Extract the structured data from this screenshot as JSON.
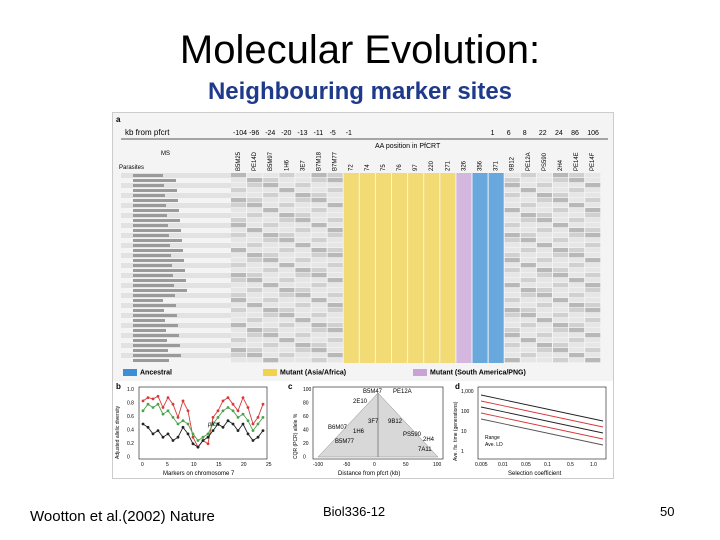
{
  "slide": {
    "title": "Molecular Evolution:",
    "subtitle": "Neighbouring marker sites",
    "footer_left": "Wootton et al.(2002) Nature",
    "footer_center": "Biol336-12",
    "page_number": "50"
  },
  "figure": {
    "panel_labels": [
      "a",
      "b",
      "c",
      "d"
    ],
    "header": {
      "kb_label": "kb from pfcrt",
      "kb_values": [
        "-104",
        "-96",
        "-24",
        "-20",
        "-13",
        "-11",
        "-5",
        "-1",
        "1",
        "6",
        "8",
        "22",
        "24",
        "86",
        "106"
      ],
      "ms_label": "MS",
      "parasites_label": "Parasites",
      "aa_label": "AA position in PfCRT",
      "markers": [
        "B5M25",
        "PE14D",
        "B5M97",
        "1H6",
        "3E7",
        "B7M18",
        "B7M77",
        "72",
        "74",
        "75",
        "76",
        "97",
        "220",
        "271",
        "326",
        "356",
        "371",
        "9B12",
        "PE12A",
        "PS590",
        "2H4",
        "PE14E",
        "PE14F"
      ]
    },
    "legend": {
      "ancestral": "Ancestral",
      "mutant_asia": "Mutant (Asia/Africa)",
      "mutant_sa": "Mutant (South America/PNG)",
      "ancestral_color": "#3a8fd6",
      "mutant_asia_color": "#f2d24b",
      "mutant_sa_color": "#c9a3d8"
    },
    "panel_b": {
      "ylabel": "Adjusted allelic diversity",
      "xlabel": "Markers on chromosome 7",
      "curve_label": "pfcrt",
      "yticks": [
        "1.0",
        "0.8",
        "0.6",
        "0.4",
        "0.2",
        "0"
      ],
      "xticks": [
        "0",
        "5",
        "10",
        "15",
        "20",
        "25"
      ]
    },
    "panel_c": {
      "ylabel": "CQR (PCR) allele %",
      "xlabel": "Distance from pfcrt (kb)",
      "yticks": [
        "100",
        "80",
        "60",
        "40",
        "20",
        "0"
      ],
      "xticks": [
        "-100",
        "-50",
        "0",
        "50",
        "100"
      ],
      "labels": [
        "B5M47",
        "PE12A",
        "2E10",
        "3F7",
        "9B12",
        "B6M07",
        "1H6",
        "PS590",
        "2H4",
        "B5M77",
        "7A11"
      ]
    },
    "panel_d": {
      "ylabel": "Ave. fix. time (generations)",
      "xlabel": "Selection coefficient",
      "yticks": [
        "1,000",
        "100",
        "10",
        "1"
      ],
      "xticks": [
        "0.005",
        "0.01",
        "0.05",
        "0.1",
        "0.5",
        "1.0"
      ],
      "legend": [
        "Range",
        "Ave. LD"
      ]
    }
  }
}
